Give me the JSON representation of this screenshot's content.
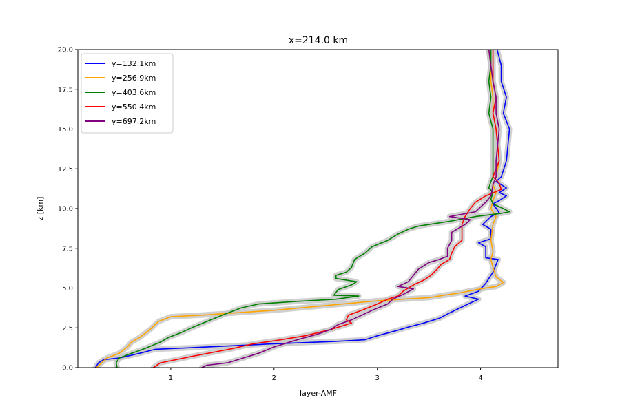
{
  "chart_data": {
    "type": "line",
    "title": "x=214.0 km",
    "xlabel": "layer-AMF",
    "ylabel": "z [km]",
    "xlim": [
      0.1,
      4.75
    ],
    "ylim": [
      0,
      20
    ],
    "xticks": [
      1,
      2,
      3,
      4
    ],
    "yticks": [
      0.0,
      2.5,
      5.0,
      7.5,
      10.0,
      12.5,
      15.0,
      17.5,
      20.0
    ],
    "xtick_labels": [
      "1",
      "2",
      "3",
      "4"
    ],
    "ytick_labels": [
      "0.0",
      "2.5",
      "5.0",
      "7.5",
      "10.0",
      "12.5",
      "15.0",
      "17.5",
      "20.0"
    ],
    "grid": false,
    "legend_position": "top-left",
    "band_color": "#c8c8c8",
    "series": [
      {
        "name": "y=132.1km",
        "color": "#0000ff",
        "points": [
          [
            0.27,
            0.0
          ],
          [
            0.3,
            0.3
          ],
          [
            0.35,
            0.5
          ],
          [
            0.5,
            0.6
          ],
          [
            0.7,
            0.9
          ],
          [
            0.85,
            1.15
          ],
          [
            1.2,
            1.25
          ],
          [
            2.0,
            1.5
          ],
          [
            2.6,
            1.65
          ],
          [
            2.88,
            1.75
          ],
          [
            3.0,
            2.0
          ],
          [
            3.2,
            2.35
          ],
          [
            3.3,
            2.55
          ],
          [
            3.45,
            2.8
          ],
          [
            3.6,
            3.1
          ],
          [
            3.72,
            3.5
          ],
          [
            3.88,
            4.0
          ],
          [
            3.98,
            4.3
          ],
          [
            3.85,
            4.5
          ],
          [
            3.98,
            4.8
          ],
          [
            4.05,
            5.3
          ],
          [
            4.12,
            6.0
          ],
          [
            4.17,
            6.8
          ],
          [
            4.05,
            6.9
          ],
          [
            4.05,
            7.6
          ],
          [
            3.98,
            7.85
          ],
          [
            4.1,
            8.1
          ],
          [
            4.1,
            8.7
          ],
          [
            4.02,
            9.0
          ],
          [
            4.1,
            9.5
          ],
          [
            4.18,
            9.75
          ],
          [
            4.12,
            10.3
          ],
          [
            4.18,
            10.5
          ],
          [
            4.25,
            10.8
          ],
          [
            4.18,
            11.0
          ],
          [
            4.25,
            11.3
          ],
          [
            4.15,
            11.7
          ],
          [
            4.2,
            12.0
          ],
          [
            4.25,
            13.0
          ],
          [
            4.28,
            15.0
          ],
          [
            4.22,
            16.0
          ],
          [
            4.25,
            17.0
          ],
          [
            4.2,
            18.0
          ],
          [
            4.2,
            19.0
          ],
          [
            4.16,
            20.0
          ]
        ]
      },
      {
        "name": "y=256.9km",
        "color": "#ffa500",
        "points": [
          [
            0.28,
            0.0
          ],
          [
            0.33,
            0.3
          ],
          [
            0.38,
            0.6
          ],
          [
            0.5,
            0.9
          ],
          [
            0.58,
            1.3
          ],
          [
            0.62,
            1.6
          ],
          [
            0.7,
            1.9
          ],
          [
            0.8,
            2.4
          ],
          [
            0.88,
            2.9
          ],
          [
            1.0,
            3.2
          ],
          [
            1.3,
            3.3
          ],
          [
            2.0,
            3.6
          ],
          [
            2.5,
            3.9
          ],
          [
            3.0,
            4.2
          ],
          [
            3.5,
            4.4
          ],
          [
            3.8,
            4.7
          ],
          [
            4.0,
            4.95
          ],
          [
            4.15,
            5.1
          ],
          [
            4.22,
            5.35
          ],
          [
            4.15,
            5.7
          ],
          [
            4.12,
            6.3
          ],
          [
            4.1,
            6.8
          ],
          [
            4.12,
            7.3
          ],
          [
            4.1,
            8.0
          ],
          [
            4.12,
            9.0
          ],
          [
            4.15,
            9.5
          ],
          [
            4.1,
            10.0
          ],
          [
            4.12,
            10.5
          ],
          [
            4.15,
            11.0
          ],
          [
            4.12,
            11.5
          ],
          [
            4.15,
            12.0
          ],
          [
            4.18,
            13.0
          ],
          [
            4.15,
            15.0
          ],
          [
            4.12,
            16.0
          ],
          [
            4.12,
            17.0
          ],
          [
            4.1,
            18.0
          ],
          [
            4.1,
            19.0
          ],
          [
            4.08,
            20.0
          ]
        ]
      },
      {
        "name": "y=403.6km",
        "color": "#008000",
        "points": [
          [
            0.48,
            0.0
          ],
          [
            0.47,
            0.3
          ],
          [
            0.5,
            0.6
          ],
          [
            0.6,
            0.85
          ],
          [
            0.75,
            1.2
          ],
          [
            0.9,
            1.6
          ],
          [
            0.98,
            1.9
          ],
          [
            1.1,
            2.2
          ],
          [
            1.2,
            2.5
          ],
          [
            1.35,
            2.9
          ],
          [
            1.5,
            3.3
          ],
          [
            1.68,
            3.75
          ],
          [
            1.85,
            4.0
          ],
          [
            2.2,
            4.15
          ],
          [
            2.6,
            4.3
          ],
          [
            2.82,
            4.5
          ],
          [
            2.58,
            4.55
          ],
          [
            2.62,
            4.9
          ],
          [
            2.75,
            5.2
          ],
          [
            2.8,
            5.4
          ],
          [
            2.6,
            5.6
          ],
          [
            2.6,
            5.8
          ],
          [
            2.7,
            6.0
          ],
          [
            2.75,
            6.3
          ],
          [
            2.78,
            6.8
          ],
          [
            2.88,
            7.2
          ],
          [
            2.95,
            7.6
          ],
          [
            3.1,
            8.0
          ],
          [
            3.2,
            8.4
          ],
          [
            3.3,
            8.7
          ],
          [
            3.4,
            8.9
          ],
          [
            3.7,
            9.2
          ],
          [
            3.95,
            9.5
          ],
          [
            4.2,
            9.7
          ],
          [
            4.28,
            9.8
          ],
          [
            4.22,
            10.0
          ],
          [
            4.12,
            10.3
          ],
          [
            4.1,
            10.6
          ],
          [
            4.12,
            11.0
          ],
          [
            4.08,
            11.3
          ],
          [
            4.1,
            11.7
          ],
          [
            4.12,
            12.0
          ],
          [
            4.12,
            13.0
          ],
          [
            4.12,
            15.0
          ],
          [
            4.08,
            16.0
          ],
          [
            4.1,
            17.0
          ],
          [
            4.08,
            18.0
          ],
          [
            4.1,
            19.0
          ],
          [
            4.1,
            20.0
          ]
        ]
      },
      {
        "name": "y=550.4km",
        "color": "#ff0000",
        "points": [
          [
            0.83,
            0.0
          ],
          [
            0.9,
            0.3
          ],
          [
            1.05,
            0.5
          ],
          [
            1.2,
            0.7
          ],
          [
            1.4,
            0.95
          ],
          [
            1.6,
            1.2
          ],
          [
            1.8,
            1.5
          ],
          [
            2.02,
            1.7
          ],
          [
            2.3,
            2.0
          ],
          [
            2.55,
            2.4
          ],
          [
            2.75,
            2.8
          ],
          [
            2.7,
            3.0
          ],
          [
            2.72,
            3.3
          ],
          [
            2.85,
            3.6
          ],
          [
            3.0,
            4.0
          ],
          [
            3.1,
            4.3
          ],
          [
            3.2,
            4.5
          ],
          [
            3.25,
            4.8
          ],
          [
            3.35,
            5.2
          ],
          [
            3.45,
            5.5
          ],
          [
            3.52,
            5.8
          ],
          [
            3.58,
            6.2
          ],
          [
            3.62,
            6.5
          ],
          [
            3.7,
            6.8
          ],
          [
            3.72,
            7.2
          ],
          [
            3.75,
            7.6
          ],
          [
            3.82,
            8.0
          ],
          [
            3.82,
            8.5
          ],
          [
            3.82,
            9.0
          ],
          [
            3.85,
            9.5
          ],
          [
            3.9,
            10.0
          ],
          [
            3.95,
            10.4
          ],
          [
            4.05,
            10.8
          ],
          [
            4.2,
            11.2
          ],
          [
            4.18,
            11.6
          ],
          [
            4.12,
            12.0
          ],
          [
            4.15,
            12.5
          ],
          [
            4.18,
            13.0
          ],
          [
            4.15,
            15.0
          ],
          [
            4.12,
            16.0
          ],
          [
            4.15,
            17.0
          ],
          [
            4.12,
            18.0
          ],
          [
            4.12,
            19.0
          ],
          [
            4.12,
            20.0
          ]
        ]
      },
      {
        "name": "y=697.2km",
        "color": "#800080",
        "points": [
          [
            1.3,
            0.0
          ],
          [
            1.35,
            0.15
          ],
          [
            1.55,
            0.3
          ],
          [
            1.7,
            0.6
          ],
          [
            1.85,
            0.9
          ],
          [
            2.0,
            1.3
          ],
          [
            2.2,
            1.7
          ],
          [
            2.42,
            2.1
          ],
          [
            2.55,
            2.4
          ],
          [
            2.62,
            2.7
          ],
          [
            2.75,
            3.0
          ],
          [
            2.85,
            3.3
          ],
          [
            2.95,
            3.6
          ],
          [
            3.1,
            4.0
          ],
          [
            3.15,
            4.3
          ],
          [
            3.25,
            4.6
          ],
          [
            3.35,
            4.95
          ],
          [
            3.2,
            5.1
          ],
          [
            3.3,
            5.4
          ],
          [
            3.35,
            5.8
          ],
          [
            3.4,
            6.2
          ],
          [
            3.5,
            6.6
          ],
          [
            3.6,
            6.8
          ],
          [
            3.68,
            7.0
          ],
          [
            3.68,
            7.5
          ],
          [
            3.72,
            8.0
          ],
          [
            3.72,
            8.5
          ],
          [
            3.85,
            9.0
          ],
          [
            3.9,
            9.3
          ],
          [
            3.7,
            9.5
          ],
          [
            3.95,
            9.8
          ],
          [
            4.0,
            10.1
          ],
          [
            4.05,
            10.4
          ],
          [
            4.1,
            10.8
          ],
          [
            4.12,
            11.5
          ],
          [
            4.15,
            12.0
          ],
          [
            4.15,
            13.0
          ],
          [
            4.18,
            15.0
          ],
          [
            4.15,
            16.0
          ],
          [
            4.15,
            17.0
          ],
          [
            4.12,
            18.0
          ],
          [
            4.1,
            19.0
          ],
          [
            4.08,
            20.0
          ]
        ]
      }
    ]
  }
}
